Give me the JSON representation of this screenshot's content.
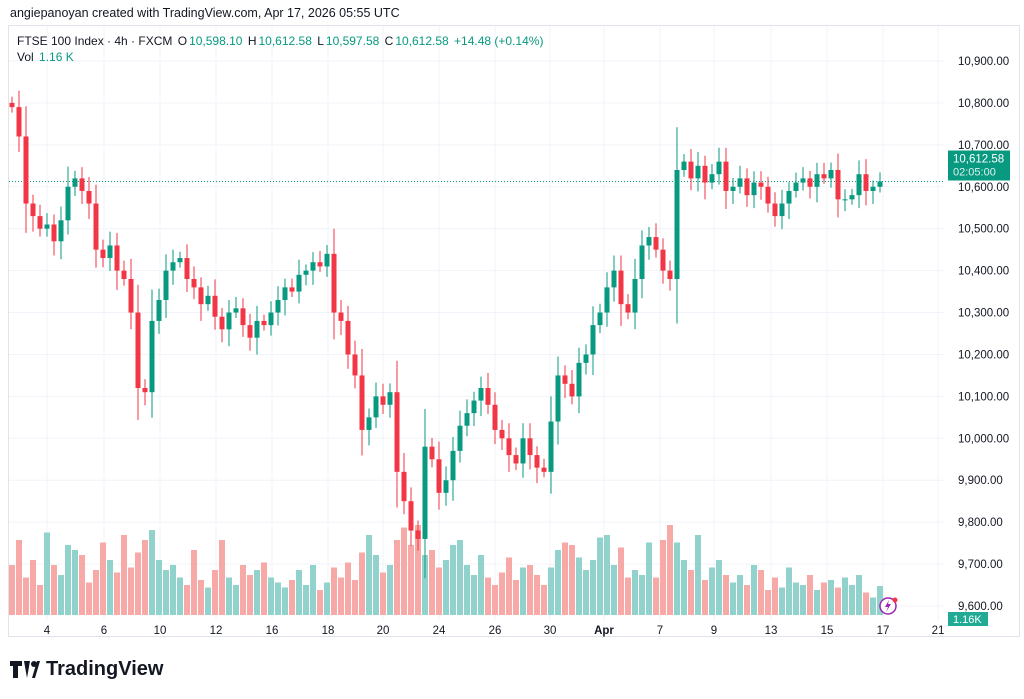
{
  "credit": "angiepanoyan created with TradingView.com, Apr 17, 2026 05:55 UTC",
  "legend": {
    "symbol": "FTSE 100 Index · 4h · FXCM",
    "o_label": "O",
    "o": "10,598.10",
    "h_label": "H",
    "h": "10,612.58",
    "l_label": "L",
    "l": "10,597.58",
    "c_label": "C",
    "c": "10,612.58",
    "change": "+14.48 (+0.14%)",
    "vol_label": "Vol",
    "vol": "1.16 K"
  },
  "logo": "TradingView",
  "colors": {
    "up": "#089981",
    "down": "#f23645",
    "up_vol": "#92d2cc",
    "down_vol": "#f7a9a7",
    "badge": "#22ab94"
  },
  "chart_data": {
    "type": "candlestick",
    "title": "FTSE 100 Index · 4h · FXCM",
    "ylim": [
      9600,
      10900
    ],
    "yticks": [
      "10,900.00",
      "10,800.00",
      "10,700.00",
      "10,600.00",
      "10,500.00",
      "10,400.00",
      "10,300.00",
      "10,200.00",
      "10,100.00",
      "10,000.00",
      "9,900.00",
      "9,800.00",
      "9,700.00",
      "9,600.00"
    ],
    "ytick_values": [
      10900,
      10800,
      10700,
      10600,
      10500,
      10400,
      10300,
      10200,
      10100,
      10000,
      9900,
      9800,
      9700,
      9600
    ],
    "xticks": [
      "4",
      "6",
      "10",
      "12",
      "16",
      "18",
      "20",
      "24",
      "26",
      "30",
      "Apr",
      "7",
      "9",
      "13",
      "15",
      "17",
      "21"
    ],
    "last_price": "10,612.58",
    "countdown": "02:05:00",
    "last_volume": "1.16K",
    "first_open": 10800,
    "close": [
      10790,
      10720,
      10560,
      10530,
      10500,
      10510,
      10470,
      10520,
      10600,
      10620,
      10590,
      10560,
      10450,
      10430,
      10460,
      10400,
      10380,
      10300,
      10120,
      10110,
      10280,
      10330,
      10400,
      10420,
      10430,
      10380,
      10360,
      10320,
      10340,
      10290,
      10260,
      10300,
      10310,
      10270,
      10240,
      10280,
      10270,
      10300,
      10330,
      10360,
      10350,
      10390,
      10400,
      10420,
      10410,
      10440,
      10300,
      10280,
      10200,
      10150,
      10020,
      10050,
      10100,
      10080,
      10110,
      9920,
      9850,
      9780,
      9760,
      9980,
      9950,
      9870,
      9900,
      9970,
      10030,
      10060,
      10090,
      10120,
      10080,
      10020,
      10000,
      9960,
      9940,
      10000,
      9960,
      9930,
      9920,
      10040,
      10150,
      10130,
      10100,
      10180,
      10200,
      10270,
      10300,
      10360,
      10400,
      10320,
      10300,
      10380,
      10460,
      10480,
      10450,
      10400,
      10380,
      10640,
      10660,
      10620,
      10650,
      10610,
      10630,
      10660,
      10590,
      10600,
      10620,
      10580,
      10610,
      10600,
      10560,
      10530,
      10560,
      10590,
      10610,
      10620,
      10600,
      10630,
      10620,
      10640,
      10570,
      10570,
      10580,
      10630,
      10590,
      10600,
      10612.58
    ],
    "volume_k": [
      2.0,
      3.0,
      1.5,
      2.2,
      1.2,
      3.3,
      2.0,
      1.6,
      2.8,
      2.6,
      2.4,
      1.3,
      1.8,
      2.9,
      2.2,
      1.7,
      3.2,
      1.9,
      2.5,
      3.0,
      3.4,
      2.2,
      1.8,
      2.0,
      1.5,
      1.2,
      2.6,
      1.4,
      1.1,
      1.8,
      3.0,
      1.5,
      1.2,
      2.0,
      1.6,
      1.8,
      2.1,
      1.5,
      1.3,
      1.1,
      1.4,
      1.8,
      1.2,
      2.0,
      1.0,
      1.3,
      1.9,
      1.5,
      2.1,
      1.4,
      2.5,
      3.2,
      2.4,
      1.7,
      2.0,
      3.0,
      3.5,
      2.8,
      3.6,
      2.4,
      2.6,
      1.9,
      2.2,
      2.8,
      3.0,
      2.0,
      1.6,
      2.4,
      1.5,
      1.2,
      1.7,
      2.3,
      1.4,
      1.9,
      2.0,
      1.6,
      1.2,
      1.9,
      2.6,
      2.9,
      2.8,
      2.3,
      1.8,
      2.2,
      3.1,
      3.2,
      2.0,
      2.7,
      1.5,
      1.8,
      1.6,
      2.9,
      1.5,
      3.0,
      3.6,
      2.9,
      2.2,
      1.8,
      3.2,
      1.4,
      1.9,
      2.2,
      1.6,
      1.3,
      1.6,
      1.2,
      2.0,
      1.8,
      1.0,
      1.5,
      1.1,
      1.9,
      1.3,
      1.2,
      1.6,
      1.0,
      1.3,
      1.4,
      1.1,
      1.5,
      1.2,
      1.6,
      0.9,
      0.7,
      1.16
    ]
  }
}
